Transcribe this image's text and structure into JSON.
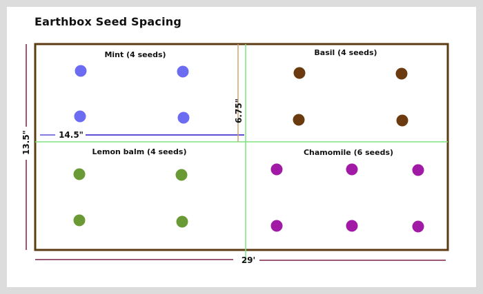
{
  "title": "Earthbox Seed Spacing",
  "colors": {
    "box_border": "#5c3a12",
    "divider": "#7ee37e",
    "dimension_line": "#7a1f45",
    "measure_horizontal": "#5b4fd6",
    "measure_vertical": "#c9a27a"
  },
  "dimensions": {
    "width": "29'",
    "height": "13.5\"",
    "spacing_horizontal": "14.5\"",
    "spacing_vertical": "6.75\""
  },
  "quadrants": [
    {
      "label": "Mint (4 seeds)",
      "color": "#6b6cf2",
      "seeds": 4
    },
    {
      "label": "Basil (4 seeds)",
      "color": "#6b3a0f",
      "seeds": 4
    },
    {
      "label": "Lemon balm (4 seeds)",
      "color": "#6a9a35",
      "seeds": 4
    },
    {
      "label": "Chamomile (6 seeds)",
      "color": "#a11aa6",
      "seeds": 6
    }
  ]
}
